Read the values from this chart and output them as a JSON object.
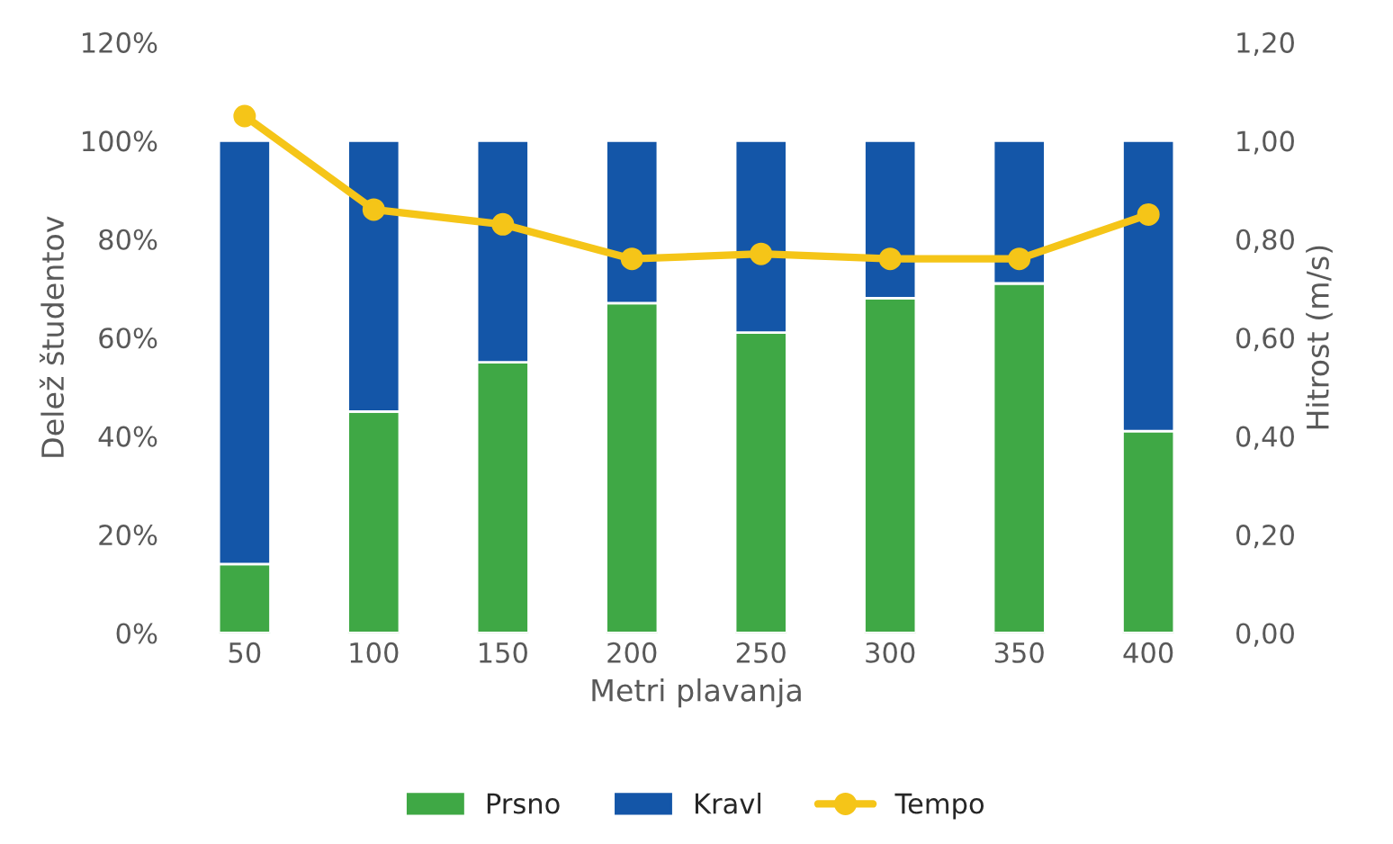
{
  "chart_data": {
    "type": "bar",
    "stacked": true,
    "xlabel": "Metri plavanja",
    "ylabel": "Delež študentov",
    "y2label": "Hitrost (m/s)",
    "categories": [
      "50",
      "100",
      "150",
      "200",
      "250",
      "300",
      "350",
      "400"
    ],
    "series": [
      {
        "name": "Prsno",
        "color": "#3fa845",
        "values": [
          14,
          45,
          55,
          67,
          61,
          68,
          71,
          41
        ]
      },
      {
        "name": "Kravl",
        "color": "#1456a8",
        "values": [
          86,
          55,
          45,
          33,
          39,
          32,
          29,
          59
        ]
      },
      {
        "name": "Tempo",
        "type": "line",
        "axis": "y2",
        "color": "#f5c518",
        "marker": "circle",
        "values": [
          1.05,
          0.86,
          0.83,
          0.76,
          0.77,
          0.76,
          0.76,
          0.85
        ]
      }
    ],
    "ylim": [
      0,
      120
    ],
    "yticks": [
      {
        "value": 0,
        "label": "0%"
      },
      {
        "value": 20,
        "label": "20%"
      },
      {
        "value": 40,
        "label": "40%"
      },
      {
        "value": 60,
        "label": "60%"
      },
      {
        "value": 80,
        "label": "80%"
      },
      {
        "value": 100,
        "label": "100%"
      },
      {
        "value": 120,
        "label": "120%"
      }
    ],
    "y2lim": [
      0,
      1.2
    ],
    "y2ticks": [
      {
        "value": 0,
        "label": "0,00"
      },
      {
        "value": 0.2,
        "label": "0,20"
      },
      {
        "value": 0.4,
        "label": "0,40"
      },
      {
        "value": 0.6,
        "label": "0,60"
      },
      {
        "value": 0.8,
        "label": "0,80"
      },
      {
        "value": 1.0,
        "label": "1,00"
      },
      {
        "value": 1.2,
        "label": "1,20"
      }
    ],
    "legend": "bottom"
  }
}
